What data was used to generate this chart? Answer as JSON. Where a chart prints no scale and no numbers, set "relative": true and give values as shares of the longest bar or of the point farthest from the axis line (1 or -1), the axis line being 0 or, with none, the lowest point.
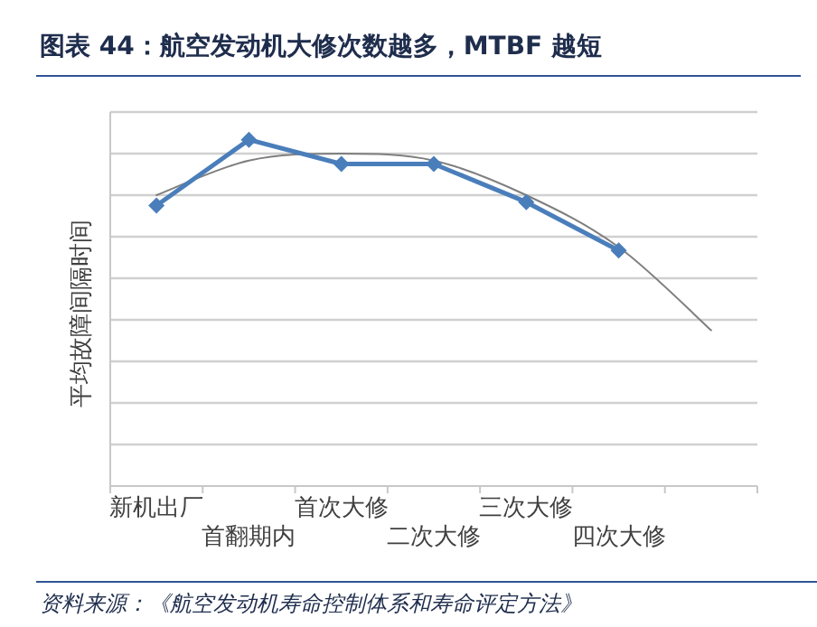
{
  "chart_data": {
    "type": "line",
    "title": "图表 44：航空发动机大修次数越多，MTBF 越短",
    "ylabel": "平均故障间隔时间",
    "categories": [
      "新机出厂",
      "首翻期内",
      "首次大修",
      "二次大修",
      "三次大修",
      "四次大修",
      null
    ],
    "relative": true,
    "grid": "y",
    "marker": "diamond",
    "line_style": "solid",
    "series": [
      {
        "color": "#4a7ebb",
        "values": [
          0.81,
          1,
          0.93,
          0.93,
          0.82,
          0.68,
          null
        ]
      },
      {
        "type": "line",
        "color": "#7f7f7f",
        "marker": "none",
        "values": [
          0.84,
          0.94,
          0.96,
          0.94,
          0.84,
          0.69,
          0.45
        ]
      }
    ],
    "annotations": [
      "资料来源：《航空发动机寿命控制体系和寿命评定方法》"
    ]
  }
}
